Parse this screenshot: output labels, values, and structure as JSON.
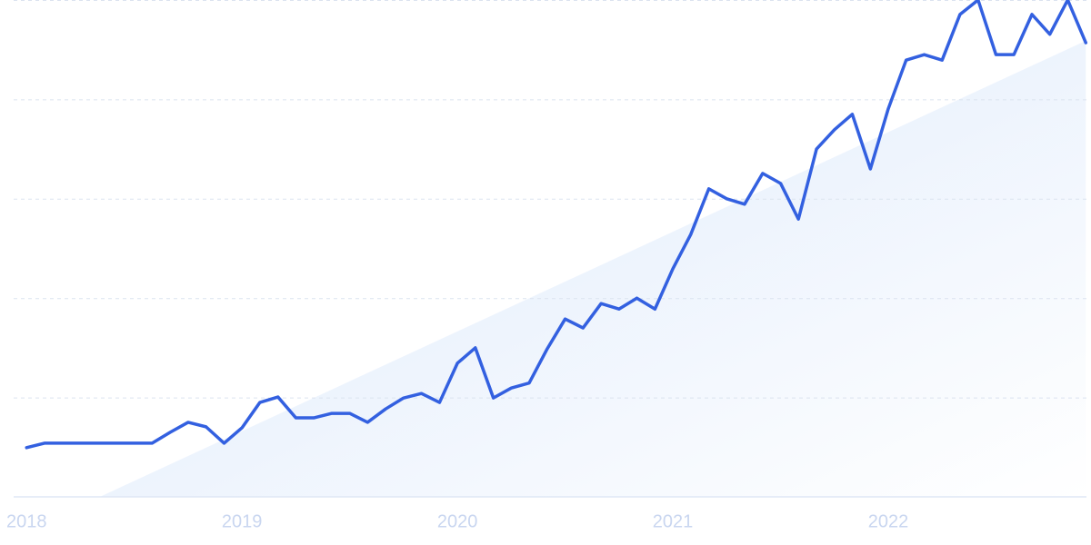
{
  "chart_data": {
    "type": "line",
    "x": [
      2018,
      2018.083,
      2018.167,
      2018.25,
      2018.333,
      2018.417,
      2018.5,
      2018.583,
      2018.667,
      2018.75,
      2018.833,
      2018.917,
      2019,
      2019.083,
      2019.167,
      2019.25,
      2019.333,
      2019.417,
      2019.5,
      2019.583,
      2019.667,
      2019.75,
      2019.833,
      2019.917,
      2020,
      2020.083,
      2020.167,
      2020.25,
      2020.333,
      2020.417,
      2020.5,
      2020.583,
      2020.667,
      2020.75,
      2020.833,
      2020.917,
      2021,
      2021.083,
      2021.167,
      2021.25,
      2021.333,
      2021.417,
      2021.5,
      2021.583,
      2021.667,
      2021.75,
      2021.833,
      2021.917,
      2022,
      2022.083,
      2022.167,
      2022.25,
      2022.333,
      2022.417,
      2022.5,
      2022.583,
      2022.667,
      2022.75,
      2022.833,
      2022.917
    ],
    "series": [
      {
        "color": "#3360e0",
        "values": [
          9.9,
          10.8,
          10.8,
          10.8,
          10.8,
          10.8,
          10.8,
          10.8,
          13.0,
          15.0,
          14.1,
          10.8,
          13.9,
          19.0,
          20.1,
          15.9,
          15.9,
          16.8,
          16.8,
          15.0,
          17.7,
          19.9,
          20.8,
          19.0,
          26.9,
          30.0,
          19.9,
          21.9,
          22.9,
          29.8,
          35.8,
          34.0,
          38.9,
          37.8,
          40.0,
          37.8,
          45.9,
          52.8,
          62.0,
          60.0,
          58.9,
          65.1,
          63.1,
          55.9,
          70.0,
          73.9,
          77.0,
          66.0,
          78.1,
          87.9,
          89.0,
          87.9,
          97.1,
          100,
          89.0,
          89.0,
          97.1,
          93.1,
          100,
          91.4
        ]
      }
    ],
    "trend": {
      "x": [
        2018.34,
        2022.917
      ],
      "values": [
        0,
        91.8
      ],
      "color": "#dde9fb"
    },
    "xlim": [
      2017.94,
      2022.92
    ],
    "xticks": [
      2018,
      2019,
      2020,
      2021,
      2022
    ],
    "ylim": [
      0,
      100
    ],
    "yticks": [
      0,
      20,
      40,
      60,
      80,
      100
    ],
    "grid": true
  }
}
